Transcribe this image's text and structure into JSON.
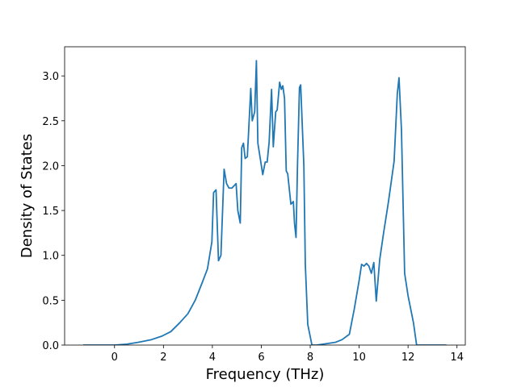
{
  "chart_data": {
    "type": "line",
    "x_label": "Frequency (THz)",
    "y_label": "Density of States",
    "xlim": [
      -2.04,
      14.34
    ],
    "ylim": [
      0,
      3.325
    ],
    "xticks": [
      0,
      2,
      4,
      6,
      8,
      10,
      12,
      14
    ],
    "yticks": [
      {
        "value": 0,
        "label": "0.0"
      },
      {
        "value": 0.5,
        "label": "0.5"
      },
      {
        "value": 1,
        "label": "1.0"
      },
      {
        "value": 1.5,
        "label": "1.5"
      },
      {
        "value": 2,
        "label": "2.0"
      },
      {
        "value": 2.5,
        "label": "2.5"
      },
      {
        "value": 3,
        "label": "3.0"
      }
    ],
    "series": [
      {
        "color": "#1f77b4",
        "x": [
          -1.28,
          0,
          0.5,
          0.96,
          1.5,
          1.94,
          2.3,
          2.67,
          3.0,
          3.3,
          3.59,
          3.8,
          3.98,
          4.05,
          4.15,
          4.25,
          4.35,
          4.48,
          4.58,
          4.68,
          4.8,
          4.97,
          5.04,
          5.14,
          5.2,
          5.27,
          5.34,
          5.43,
          5.57,
          5.63,
          5.73,
          5.8,
          5.86,
          6.06,
          6.16,
          6.24,
          6.32,
          6.42,
          6.49,
          6.59,
          6.65,
          6.75,
          6.82,
          6.88,
          6.95,
          7.02,
          7.08,
          7.21,
          7.31,
          7.36,
          7.42,
          7.48,
          7.56,
          7.61,
          7.74,
          7.8,
          7.9,
          8.07,
          8.27,
          9.02,
          9.3,
          9.6,
          9.8,
          10.0,
          10.1,
          10.2,
          10.3,
          10.4,
          10.5,
          10.6,
          10.7,
          10.84,
          11.0,
          11.2,
          11.43,
          11.56,
          11.63,
          11.73,
          11.86,
          12.0,
          12.22,
          12.35,
          13.57
        ],
        "values": [
          0,
          0,
          0.01,
          0.03,
          0.06,
          0.1,
          0.15,
          0.25,
          0.35,
          0.5,
          0.7,
          0.85,
          1.15,
          1.7,
          1.73,
          0.94,
          1.0,
          1.96,
          1.8,
          1.75,
          1.75,
          1.8,
          1.5,
          1.36,
          2.2,
          2.25,
          2.08,
          2.1,
          2.86,
          2.5,
          2.6,
          3.17,
          2.25,
          1.9,
          2.04,
          2.04,
          2.26,
          2.85,
          2.21,
          2.6,
          2.62,
          2.93,
          2.85,
          2.89,
          2.75,
          1.94,
          1.91,
          1.57,
          1.6,
          1.35,
          1.2,
          2.0,
          2.87,
          2.9,
          2.0,
          0.9,
          0.23,
          0.0,
          0,
          0.03,
          0.06,
          0.12,
          0.4,
          0.72,
          0.9,
          0.88,
          0.91,
          0.88,
          0.8,
          0.92,
          0.49,
          0.95,
          1.25,
          1.6,
          2.05,
          2.8,
          2.98,
          2.4,
          0.8,
          0.55,
          0.25,
          0,
          0
        ]
      }
    ]
  }
}
